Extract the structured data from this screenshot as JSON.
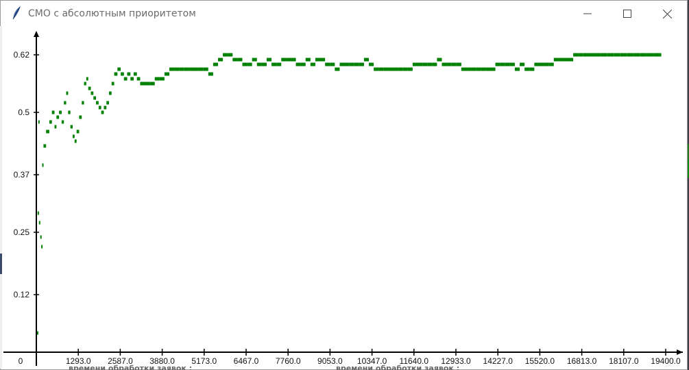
{
  "window": {
    "title": "СМО с абсолютным приоритетом",
    "icon": "feather-icon",
    "controls": [
      "minimize-icon",
      "maximize-icon",
      "close-icon"
    ]
  },
  "background_text": {
    "left": "времени обработки заявок :",
    "right": "времени обработки заявок :"
  },
  "chart_data": {
    "type": "scatter",
    "title": "",
    "xlabel": "",
    "ylabel": "",
    "xlim": [
      0,
      19400
    ],
    "ylim": [
      0,
      0.66
    ],
    "x_ticks": [
      "0",
      "1293.0",
      "2587.0",
      "3880.0",
      "5173.0",
      "6467.0",
      "7760.0",
      "9053.0",
      "10347.0",
      "11640.0",
      "12933.0",
      "14227.0",
      "15520.0",
      "16813.0",
      "18107.0",
      "19400.0"
    ],
    "y_ticks": [
      "0.12",
      "0.25",
      "0.37",
      "0.5",
      "0.62"
    ],
    "color": "#008000",
    "series": [
      {
        "points": [
          [
            20,
            0.04
          ],
          [
            40,
            0.29
          ],
          [
            60,
            0.48
          ],
          [
            80,
            0.27
          ],
          [
            120,
            0.24
          ],
          [
            150,
            0.22
          ],
          [
            180,
            0.39
          ],
          [
            220,
            0.43
          ],
          [
            300,
            0.46
          ],
          [
            400,
            0.48
          ],
          [
            480,
            0.5
          ],
          [
            560,
            0.47
          ],
          [
            620,
            0.49
          ],
          [
            700,
            0.5
          ],
          [
            780,
            0.48
          ],
          [
            850,
            0.52
          ],
          [
            920,
            0.54
          ],
          [
            980,
            0.5
          ],
          [
            1050,
            0.47
          ],
          [
            1120,
            0.45
          ],
          [
            1180,
            0.44
          ],
          [
            1240,
            0.46
          ],
          [
            1320,
            0.49
          ],
          [
            1400,
            0.52
          ],
          [
            1470,
            0.56
          ],
          [
            1540,
            0.57
          ],
          [
            1600,
            0.55
          ],
          [
            1680,
            0.54
          ],
          [
            1760,
            0.53
          ],
          [
            1840,
            0.52
          ],
          [
            1920,
            0.51
          ],
          [
            2000,
            0.5
          ],
          [
            2080,
            0.51
          ],
          [
            2160,
            0.52
          ],
          [
            2240,
            0.54
          ],
          [
            2320,
            0.56
          ],
          [
            2400,
            0.58
          ],
          [
            2500,
            0.59
          ],
          [
            2600,
            0.58
          ],
          [
            2700,
            0.57
          ],
          [
            2800,
            0.58
          ],
          [
            2900,
            0.57
          ],
          [
            3000,
            0.58
          ],
          [
            3100,
            0.57
          ],
          [
            3200,
            0.56
          ],
          [
            3350,
            0.56
          ],
          [
            3500,
            0.56
          ],
          [
            3650,
            0.57
          ],
          [
            3800,
            0.57
          ],
          [
            3950,
            0.58
          ],
          [
            4100,
            0.59
          ],
          [
            4250,
            0.59
          ],
          [
            4400,
            0.59
          ],
          [
            4550,
            0.59
          ],
          [
            4700,
            0.59
          ],
          [
            4850,
            0.59
          ],
          [
            5000,
            0.59
          ],
          [
            5150,
            0.59
          ],
          [
            5300,
            0.58
          ],
          [
            5450,
            0.6
          ],
          [
            5600,
            0.61
          ],
          [
            5750,
            0.62
          ],
          [
            5900,
            0.62
          ],
          [
            6050,
            0.61
          ],
          [
            6200,
            0.61
          ],
          [
            6350,
            0.6
          ],
          [
            6500,
            0.6
          ],
          [
            6650,
            0.61
          ],
          [
            6800,
            0.6
          ],
          [
            6950,
            0.6
          ],
          [
            7100,
            0.61
          ],
          [
            7250,
            0.6
          ],
          [
            7400,
            0.6
          ],
          [
            7550,
            0.61
          ],
          [
            7700,
            0.61
          ],
          [
            7850,
            0.61
          ],
          [
            8000,
            0.6
          ],
          [
            8150,
            0.6
          ],
          [
            8300,
            0.61
          ],
          [
            8450,
            0.6
          ],
          [
            8600,
            0.61
          ],
          [
            8750,
            0.61
          ],
          [
            8900,
            0.6
          ],
          [
            9050,
            0.6
          ],
          [
            9200,
            0.59
          ],
          [
            9350,
            0.6
          ],
          [
            9500,
            0.6
          ],
          [
            9650,
            0.6
          ],
          [
            9800,
            0.6
          ],
          [
            9950,
            0.6
          ],
          [
            10100,
            0.61
          ],
          [
            10250,
            0.6
          ],
          [
            10400,
            0.59
          ],
          [
            10550,
            0.59
          ],
          [
            10700,
            0.59
          ],
          [
            10850,
            0.59
          ],
          [
            11000,
            0.59
          ],
          [
            11150,
            0.59
          ],
          [
            11300,
            0.59
          ],
          [
            11450,
            0.59
          ],
          [
            11600,
            0.6
          ],
          [
            11750,
            0.6
          ],
          [
            11900,
            0.6
          ],
          [
            12050,
            0.6
          ],
          [
            12200,
            0.6
          ],
          [
            12350,
            0.61
          ],
          [
            12500,
            0.6
          ],
          [
            12650,
            0.6
          ],
          [
            12800,
            0.6
          ],
          [
            12950,
            0.6
          ],
          [
            13100,
            0.59
          ],
          [
            13250,
            0.59
          ],
          [
            13400,
            0.59
          ],
          [
            13550,
            0.59
          ],
          [
            13700,
            0.59
          ],
          [
            13850,
            0.59
          ],
          [
            14000,
            0.59
          ],
          [
            14150,
            0.6
          ],
          [
            14300,
            0.6
          ],
          [
            14450,
            0.6
          ],
          [
            14600,
            0.6
          ],
          [
            14750,
            0.59
          ],
          [
            14900,
            0.6
          ],
          [
            15050,
            0.59
          ],
          [
            15200,
            0.59
          ],
          [
            15350,
            0.6
          ],
          [
            15500,
            0.6
          ],
          [
            15650,
            0.6
          ],
          [
            15800,
            0.6
          ],
          [
            15950,
            0.61
          ],
          [
            16100,
            0.61
          ],
          [
            16250,
            0.61
          ],
          [
            16400,
            0.61
          ],
          [
            16550,
            0.62
          ],
          [
            16700,
            0.62
          ],
          [
            16850,
            0.62
          ],
          [
            17000,
            0.62
          ],
          [
            17200,
            0.62
          ],
          [
            17400,
            0.62
          ],
          [
            17600,
            0.62
          ],
          [
            17800,
            0.62
          ],
          [
            18000,
            0.62
          ],
          [
            18200,
            0.62
          ],
          [
            18400,
            0.62
          ],
          [
            18600,
            0.62
          ],
          [
            18800,
            0.62
          ],
          [
            19000,
            0.62
          ],
          [
            19200,
            0.62
          ]
        ]
      }
    ]
  }
}
